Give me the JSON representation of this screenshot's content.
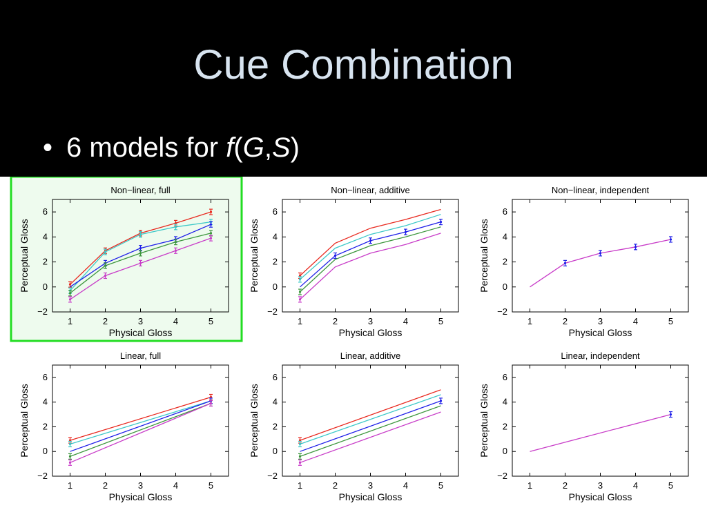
{
  "slide": {
    "title": "Cue Combination",
    "bullet_prefix": "6 models for ",
    "bullet_f": "f",
    "bullet_open": "(",
    "bullet_G": "G",
    "bullet_comma": ",",
    "bullet_S": "S",
    "bullet_close": ")"
  },
  "colors": {
    "background": "#000000",
    "title": "#d8e4f0",
    "highlight_border": "#22dd22",
    "highlight_fill": "#eefbee",
    "series": [
      "#e8281e",
      "#3cc8c8",
      "#1e1ee8",
      "#3c963c",
      "#c83cc8"
    ]
  },
  "chart_data": [
    {
      "type": "line",
      "title": "Non−linear, full",
      "xlabel": "Physical Gloss",
      "ylabel": "Perceptual Gloss",
      "xlim": [
        0.5,
        5.5
      ],
      "ylim": [
        -2,
        7
      ],
      "x": [
        1,
        2,
        3,
        4,
        5
      ],
      "yticks": [
        -2,
        0,
        2,
        4,
        6
      ],
      "yticklabels": [
        "−2",
        "0",
        "2",
        "4",
        "6"
      ],
      "xticklabels": [
        "1",
        "2",
        "3",
        "4",
        "5"
      ],
      "highlighted": true,
      "series": [
        {
          "values": [
            0.2,
            2.9,
            4.3,
            5.1,
            6.0
          ],
          "errorbars": [
            0,
            1,
            2,
            3,
            4
          ]
        },
        {
          "values": [
            -0.3,
            2.8,
            4.2,
            4.8,
            5.2
          ],
          "errorbars": [
            0,
            1,
            2,
            3,
            4
          ]
        },
        {
          "values": [
            0.0,
            1.9,
            3.1,
            3.8,
            5.0
          ],
          "errorbars": [
            1,
            2,
            3,
            4
          ]
        },
        {
          "values": [
            -0.5,
            1.7,
            2.7,
            3.6,
            4.3
          ],
          "errorbars": [
            0,
            1,
            2,
            3,
            4
          ]
        },
        {
          "values": [
            -1.0,
            0.9,
            1.9,
            2.9,
            3.9
          ],
          "errorbars": [
            0,
            1,
            2,
            3,
            4
          ]
        }
      ]
    },
    {
      "type": "line",
      "title": "Non−linear, additive",
      "xlabel": "Physical Gloss",
      "ylabel": "Perceptual Gloss",
      "xlim": [
        0.5,
        5.5
      ],
      "ylim": [
        -2,
        7
      ],
      "x": [
        1,
        2,
        3,
        4,
        5
      ],
      "yticks": [
        -2,
        0,
        2,
        4,
        6
      ],
      "yticklabels": [
        "−2",
        "0",
        "2",
        "4",
        "6"
      ],
      "xticklabels": [
        "1",
        "2",
        "3",
        "4",
        "5"
      ],
      "highlighted": false,
      "series": [
        {
          "values": [
            0.9,
            3.5,
            4.7,
            5.4,
            6.2
          ],
          "errorbars": [
            0
          ]
        },
        {
          "values": [
            0.6,
            3.1,
            4.2,
            4.9,
            5.8
          ],
          "errorbars": [
            0
          ]
        },
        {
          "values": [
            0.0,
            2.5,
            3.7,
            4.4,
            5.2
          ],
          "errorbars": [
            1,
            2,
            3,
            4
          ]
        },
        {
          "values": [
            -0.4,
            2.2,
            3.3,
            4.0,
            4.8
          ],
          "errorbars": [
            0
          ]
        },
        {
          "values": [
            -1.0,
            1.6,
            2.7,
            3.4,
            4.3
          ],
          "errorbars": [
            0
          ]
        }
      ]
    },
    {
      "type": "line",
      "title": "Non−linear, independent",
      "xlabel": "Physical Gloss",
      "ylabel": "Perceptual Gloss",
      "xlim": [
        0.5,
        5.5
      ],
      "ylim": [
        -2,
        7
      ],
      "x": [
        1,
        2,
        3,
        4,
        5
      ],
      "yticks": [
        -2,
        0,
        2,
        4,
        6
      ],
      "yticklabels": [
        "−2",
        "0",
        "2",
        "4",
        "6"
      ],
      "xticklabels": [
        "1",
        "2",
        "3",
        "4",
        "5"
      ],
      "highlighted": false,
      "series": [
        {
          "values": [
            0.0,
            1.9,
            2.7,
            3.2,
            3.8
          ],
          "errorbars": [
            1,
            2,
            3,
            4
          ]
        }
      ]
    },
    {
      "type": "line",
      "title": "Linear, full",
      "xlabel": "Physical Gloss",
      "ylabel": "Perceptual Gloss",
      "xlim": [
        0.5,
        5.5
      ],
      "ylim": [
        -2,
        7
      ],
      "x": [
        1,
        5
      ],
      "yticks": [
        -2,
        0,
        2,
        4,
        6
      ],
      "yticklabels": [
        "−2",
        "0",
        "2",
        "4",
        "6"
      ],
      "xticklabels": [
        "1",
        "2",
        "3",
        "4",
        "5"
      ],
      "highlighted": false,
      "series": [
        {
          "values": [
            0.9,
            4.4
          ],
          "errorbars": [
            0,
            1
          ]
        },
        {
          "values": [
            0.6,
            4.1
          ],
          "errorbars": [
            0,
            1
          ]
        },
        {
          "values": [
            0.0,
            4.1
          ],
          "errorbars": [
            1
          ]
        },
        {
          "values": [
            -0.4,
            3.9
          ],
          "errorbars": [
            0,
            1
          ]
        },
        {
          "values": [
            -0.9,
            3.9
          ],
          "errorbars": [
            0,
            1
          ]
        }
      ]
    },
    {
      "type": "line",
      "title": "Linear, additive",
      "xlabel": "Physical Gloss",
      "ylabel": "Perceptual Gloss",
      "xlim": [
        0.5,
        5.5
      ],
      "ylim": [
        -2,
        7
      ],
      "x": [
        1,
        5
      ],
      "yticks": [
        -2,
        0,
        2,
        4,
        6
      ],
      "yticklabels": [
        "−2",
        "0",
        "2",
        "4",
        "6"
      ],
      "xticklabels": [
        "1",
        "2",
        "3",
        "4",
        "5"
      ],
      "highlighted": false,
      "series": [
        {
          "values": [
            0.9,
            5.0
          ],
          "errorbars": [
            0
          ]
        },
        {
          "values": [
            0.6,
            4.6
          ],
          "errorbars": [
            0
          ]
        },
        {
          "values": [
            0.0,
            4.1
          ],
          "errorbars": [
            1
          ]
        },
        {
          "values": [
            -0.4,
            3.7
          ],
          "errorbars": [
            0
          ]
        },
        {
          "values": [
            -0.9,
            3.2
          ],
          "errorbars": [
            0
          ]
        }
      ]
    },
    {
      "type": "line",
      "title": "Linear, independent",
      "xlabel": "Physical Gloss",
      "ylabel": "Perceptual Gloss",
      "xlim": [
        0.5,
        5.5
      ],
      "ylim": [
        -2,
        7
      ],
      "x": [
        1,
        5
      ],
      "yticks": [
        -2,
        0,
        2,
        4,
        6
      ],
      "yticklabels": [
        "−2",
        "0",
        "2",
        "4",
        "6"
      ],
      "xticklabels": [
        "1",
        "2",
        "3",
        "4",
        "5"
      ],
      "highlighted": false,
      "series": [
        {
          "values": [
            0.0,
            3.0
          ],
          "errorbars": [
            1
          ]
        }
      ]
    }
  ]
}
